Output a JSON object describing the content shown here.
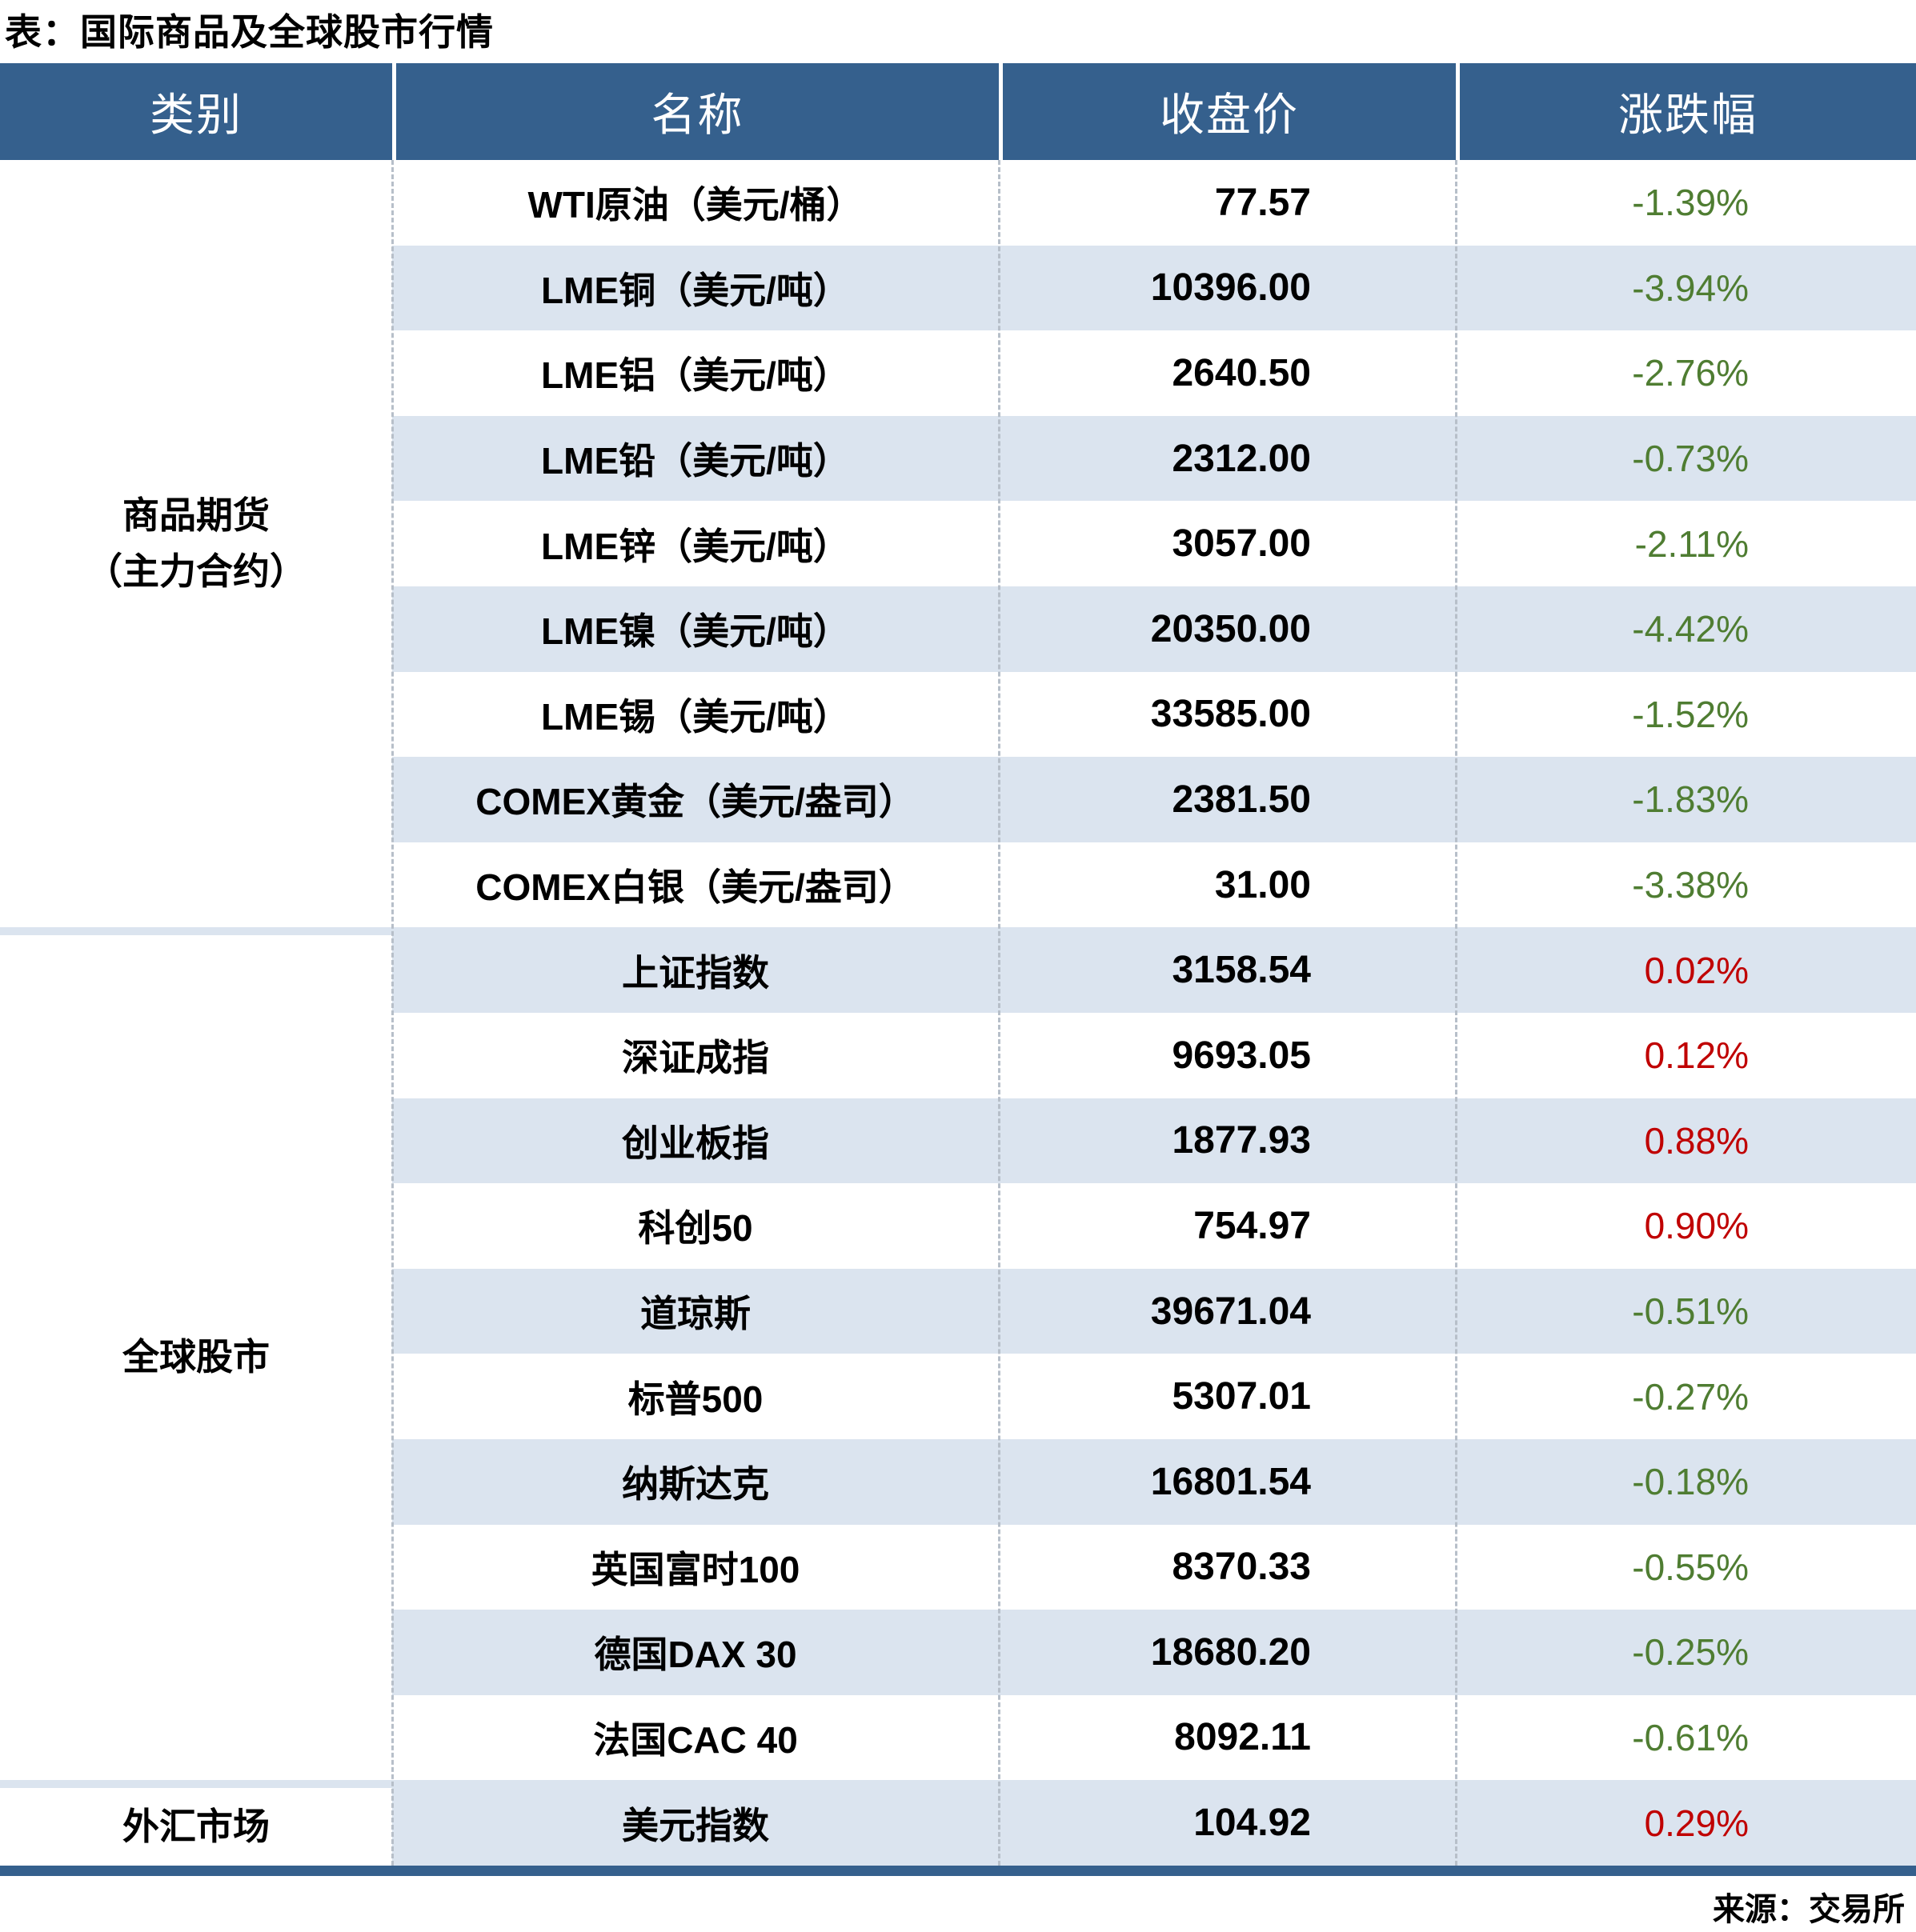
{
  "title": "表：国际商品及全球股市行情",
  "source": "来源：交易所",
  "chart_data": {
    "type": "table",
    "title": "表：国际商品及全球股市行情",
    "columns": [
      "类别",
      "名称",
      "收盘价",
      "涨跌幅"
    ],
    "groups": [
      {
        "category": "商品期货（主力合约）",
        "row_count": 9
      },
      {
        "category": "全球股市",
        "row_count": 10
      },
      {
        "category": "外汇市场",
        "row_count": 1
      }
    ],
    "rows": [
      {
        "category": "商品期货（主力合约）",
        "name": "WTI原油（美元/桶）",
        "close": "77.57",
        "change": "-1.39%"
      },
      {
        "category": "商品期货（主力合约）",
        "name": "LME铜（美元/吨）",
        "close": "10396.00",
        "change": "-3.94%"
      },
      {
        "category": "商品期货（主力合约）",
        "name": "LME铝（美元/吨）",
        "close": "2640.50",
        "change": "-2.76%"
      },
      {
        "category": "商品期货（主力合约）",
        "name": "LME铅（美元/吨）",
        "close": "2312.00",
        "change": "-0.73%"
      },
      {
        "category": "商品期货（主力合约）",
        "name": "LME锌（美元/吨）",
        "close": "3057.00",
        "change": "-2.11%"
      },
      {
        "category": "商品期货（主力合约）",
        "name": "LME镍（美元/吨）",
        "close": "20350.00",
        "change": "-4.42%"
      },
      {
        "category": "商品期货（主力合约）",
        "name": "LME锡（美元/吨）",
        "close": "33585.00",
        "change": "-1.52%"
      },
      {
        "category": "商品期货（主力合约）",
        "name": "COMEX黄金（美元/盎司）",
        "close": "2381.50",
        "change": "-1.83%"
      },
      {
        "category": "商品期货（主力合约）",
        "name": "COMEX白银（美元/盎司）",
        "close": "31.00",
        "change": "-3.38%"
      },
      {
        "category": "全球股市",
        "name": "上证指数",
        "close": "3158.54",
        "change": "0.02%"
      },
      {
        "category": "全球股市",
        "name": "深证成指",
        "close": "9693.05",
        "change": "0.12%"
      },
      {
        "category": "全球股市",
        "name": "创业板指",
        "close": "1877.93",
        "change": "0.88%"
      },
      {
        "category": "全球股市",
        "name": "科创50",
        "close": "754.97",
        "change": "0.90%"
      },
      {
        "category": "全球股市",
        "name": "道琼斯",
        "close": "39671.04",
        "change": "-0.51%"
      },
      {
        "category": "全球股市",
        "name": "标普500",
        "close": "5307.01",
        "change": "-0.27%"
      },
      {
        "category": "全球股市",
        "name": "纳斯达克",
        "close": "16801.54",
        "change": "-0.18%"
      },
      {
        "category": "全球股市",
        "name": "英国富时100",
        "close": "8370.33",
        "change": "-0.55%"
      },
      {
        "category": "全球股市",
        "name": "德国DAX 30",
        "close": "18680.20",
        "change": "-0.25%"
      },
      {
        "category": "全球股市",
        "name": "法国CAC 40",
        "close": "8092.11",
        "change": "-0.61%"
      },
      {
        "category": "外汇市场",
        "name": "美元指数",
        "close": "104.92",
        "change": "0.29%"
      }
    ]
  },
  "table": {
    "headers": {
      "category": "类别",
      "name": "名称",
      "close": "收盘价",
      "change": "涨跌幅"
    },
    "category_labels": [
      "商品期货\n（主力合约）",
      "全球股市",
      "外汇市场"
    ]
  },
  "colors": {
    "header_bg": "#35608D",
    "header_text": "#FFFFFF",
    "row_alt_bg": "#DBE4EF",
    "up_red": "#C00000",
    "down_green": "#4F7D32",
    "bottom_bar": "#35608D",
    "divider_dash": "#B7BFC9"
  }
}
